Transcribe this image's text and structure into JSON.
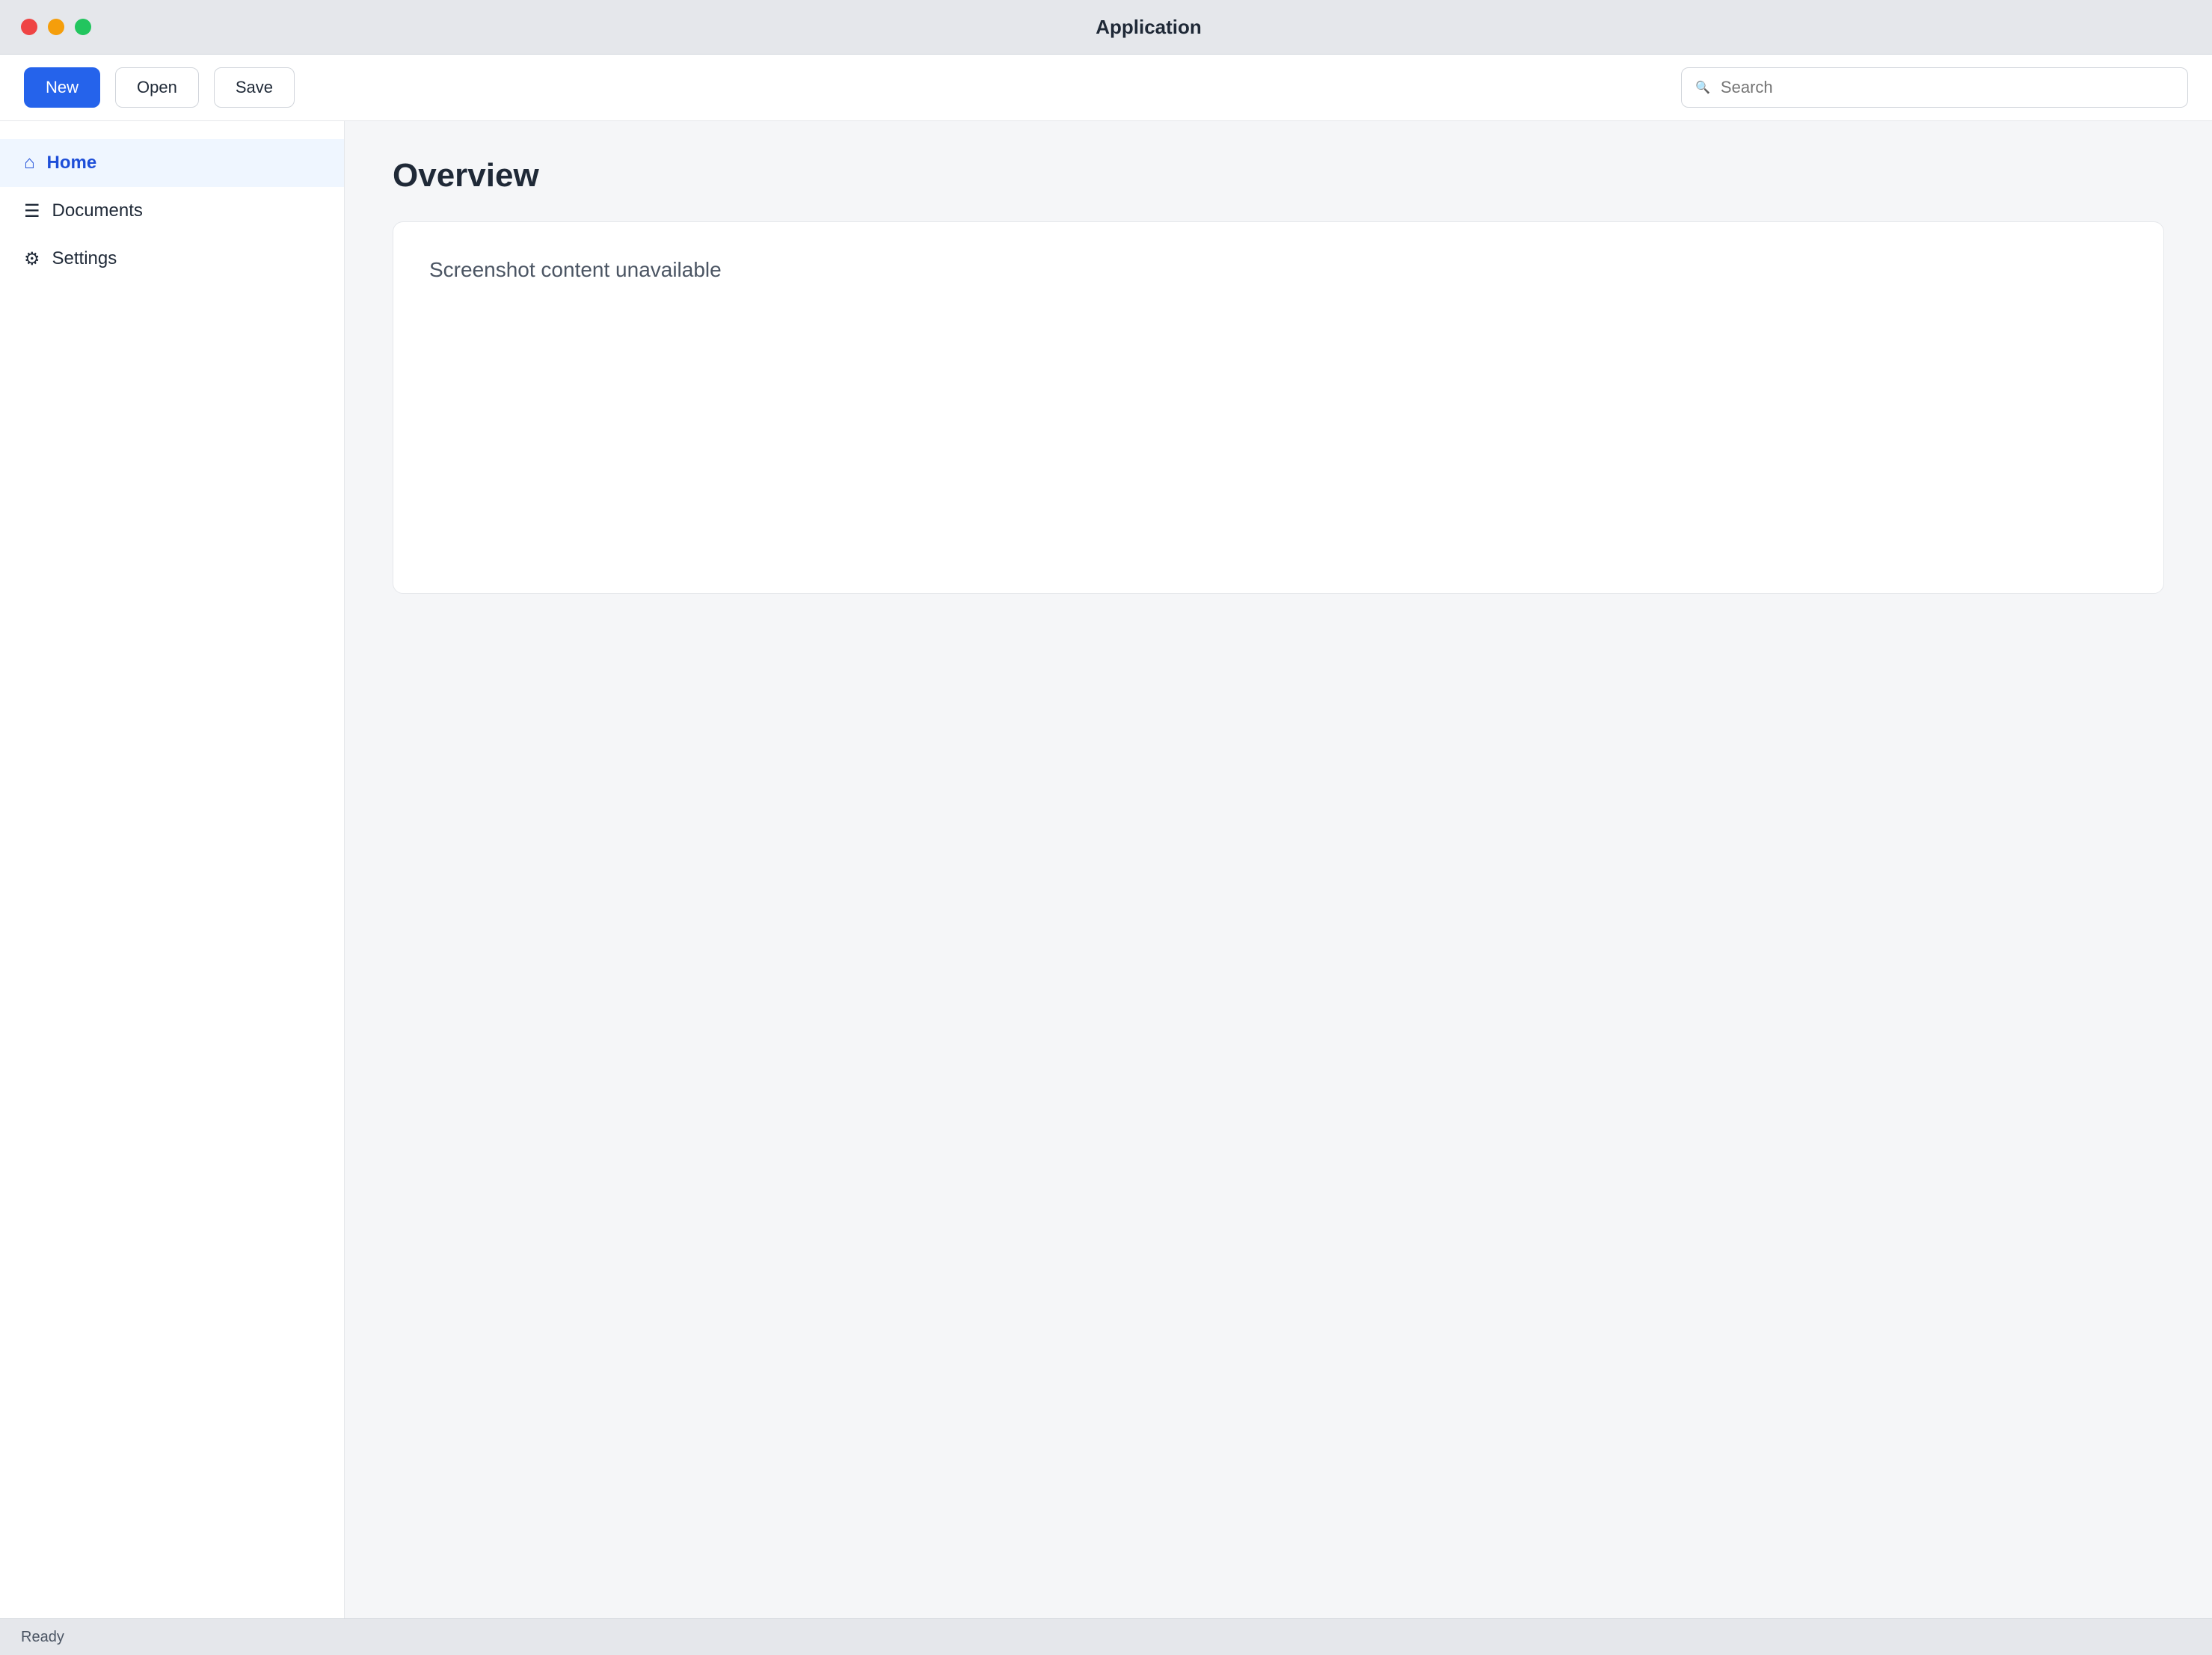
{
  "window": {
    "title": "Application"
  },
  "toolbar": {
    "new_label": "New",
    "open_label": "Open",
    "save_label": "Save",
    "search_placeholder": "Search"
  },
  "sidebar": {
    "items": [
      {
        "label": "Home"
      },
      {
        "label": "Documents"
      },
      {
        "label": "Settings"
      }
    ]
  },
  "main": {
    "title": "Overview",
    "message": "Screenshot content unavailable"
  },
  "status": {
    "text": "Ready"
  },
  "colors": {
    "accent": "#2563eb"
  }
}
